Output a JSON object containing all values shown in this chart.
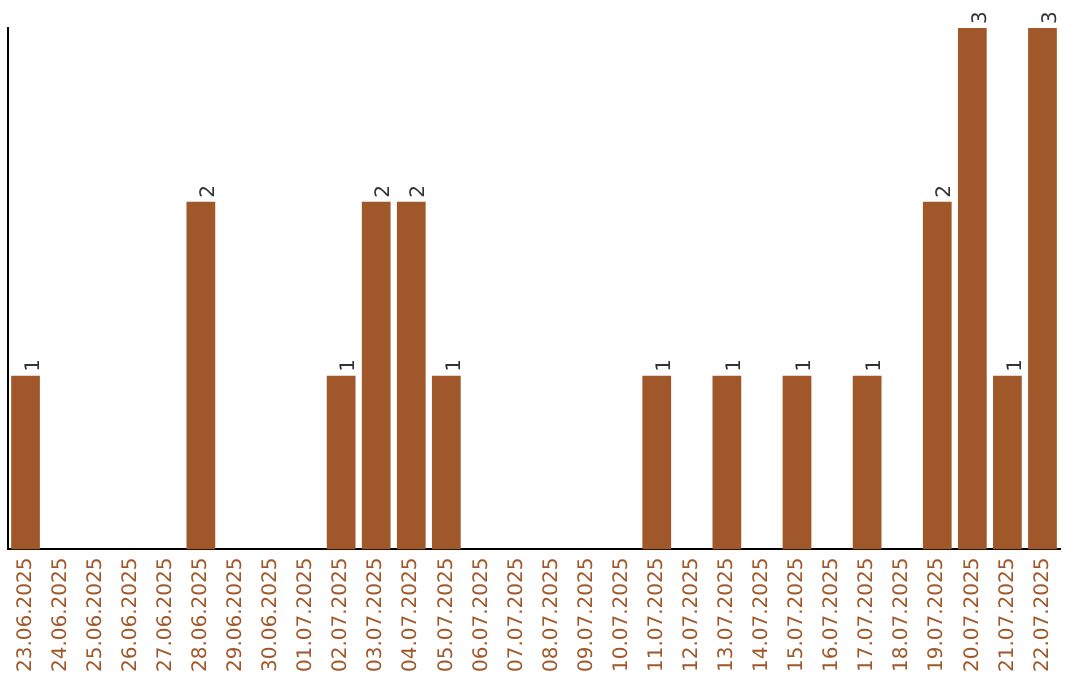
{
  "chart_data": {
    "type": "bar",
    "categories": [
      "23.06.2025",
      "24.06.2025",
      "25.06.2025",
      "26.06.2025",
      "27.06.2025",
      "28.06.2025",
      "29.06.2025",
      "30.06.2025",
      "01.07.2025",
      "02.07.2025",
      "03.07.2025",
      "04.07.2025",
      "05.07.2025",
      "06.07.2025",
      "07.07.2025",
      "08.07.2025",
      "09.07.2025",
      "10.07.2025",
      "11.07.2025",
      "12.07.2025",
      "13.07.2025",
      "14.07.2025",
      "15.07.2025",
      "16.07.2025",
      "17.07.2025",
      "18.07.2025",
      "19.07.2025",
      "20.07.2025",
      "21.07.2025",
      "22.07.2025"
    ],
    "values": [
      1,
      0,
      0,
      0,
      0,
      2,
      0,
      0,
      0,
      1,
      2,
      2,
      1,
      0,
      0,
      0,
      0,
      0,
      1,
      0,
      1,
      0,
      1,
      0,
      1,
      0,
      2,
      3,
      1,
      3
    ],
    "value_labels": [
      "1",
      null,
      null,
      null,
      null,
      "2",
      null,
      null,
      null,
      "1",
      "2",
      "2",
      "1",
      null,
      null,
      null,
      null,
      null,
      "1",
      null,
      "1",
      null,
      "1",
      null,
      "1",
      null,
      "2",
      "3",
      "1",
      "3"
    ],
    "color": "#a0582a",
    "grid": false,
    "legend": false,
    "tick_labels": "x"
  }
}
